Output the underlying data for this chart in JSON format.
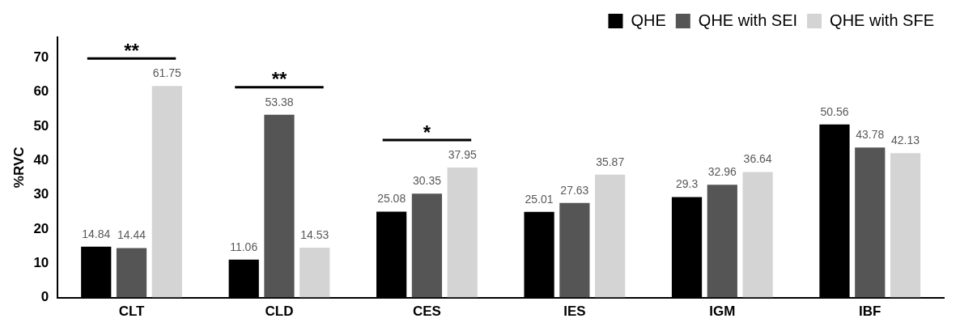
{
  "chart_data": {
    "type": "bar",
    "ylabel": "%RVC",
    "categories": [
      "CLT",
      "CLD",
      "CES",
      "IES",
      "IGM",
      "IBF"
    ],
    "series": [
      {
        "name": "QHE",
        "color": "#000000",
        "values": [
          14.84,
          11.06,
          25.08,
          25.01,
          29.3,
          50.56
        ]
      },
      {
        "name": "QHE with SEI",
        "color": "#555555",
        "values": [
          14.44,
          53.38,
          30.35,
          27.63,
          32.96,
          43.78
        ]
      },
      {
        "name": "QHE with SFE",
        "color": "#d4d4d4",
        "values": [
          61.75,
          14.53,
          37.95,
          35.87,
          36.64,
          42.13
        ]
      }
    ],
    "ylim": [
      0,
      76
    ],
    "yticks": [
      0,
      10,
      20,
      30,
      40,
      50,
      60,
      70
    ],
    "grid": false,
    "legend": "top right",
    "data_labels": true,
    "annotations": [
      "**",
      "**",
      "*"
    ]
  }
}
